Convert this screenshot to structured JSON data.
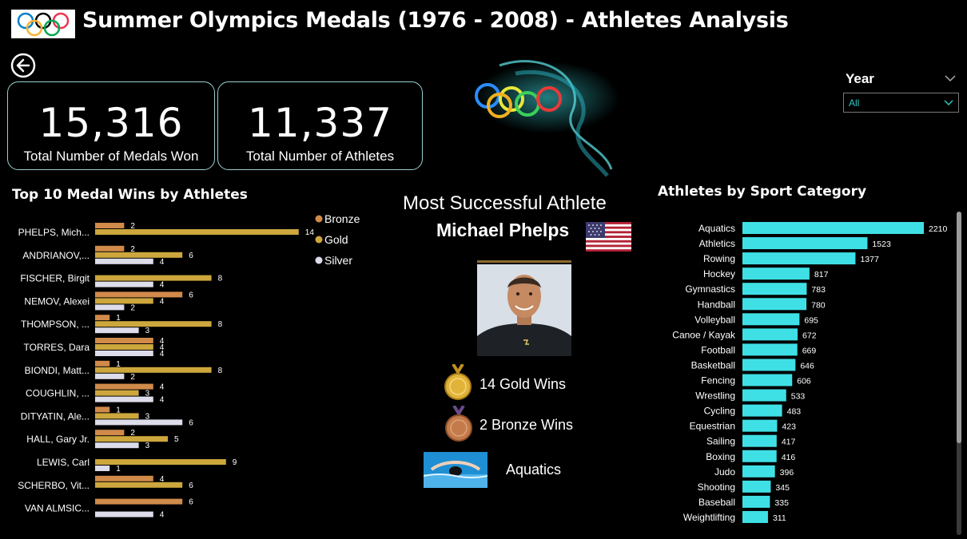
{
  "header": {
    "title": "Summer Olympics Medals (1976 - 2008) - Athletes Analysis",
    "logo_icon": "olympic-rings-icon",
    "back_icon": "back-arrow-icon"
  },
  "kpis": [
    {
      "value": "15,316",
      "label": "Total  Number of Medals Won"
    },
    {
      "value": "11,337",
      "label": "Total Number of Athletes"
    }
  ],
  "slicer": {
    "title": "Year",
    "value": "All"
  },
  "colors": {
    "bronze": "#d08a4a",
    "gold": "#cda73d",
    "silver": "#dcdcea",
    "accent": "#3fe0e5"
  },
  "athletes_chart": {
    "title": "Top 10 Medal Wins by Athletes",
    "legend": [
      "Bronze",
      "Gold",
      "Silver"
    ],
    "chart_data": {
      "type": "bar",
      "orientation": "horizontal",
      "title": "Top 10 Medal Wins by Athletes",
      "legend_position": "top-right",
      "categories": [
        "PHELPS, Mich...",
        "ANDRIANOV,...",
        "FISCHER, Birgit",
        "NEMOV, Alexei",
        "THOMPSON, ...",
        "TORRES, Dara",
        "BIONDI, Matt...",
        "COUGHLIN, ...",
        "DITYATIN, Ale...",
        "HALL, Gary Jr.",
        "LEWIS, Carl",
        "SCHERBO, Vit...",
        "VAN ALMSIC..."
      ],
      "series": [
        {
          "name": "Bronze",
          "values": [
            2,
            2,
            null,
            6,
            1,
            4,
            1,
            4,
            1,
            2,
            null,
            4,
            6
          ]
        },
        {
          "name": "Gold",
          "values": [
            14,
            6,
            8,
            4,
            8,
            4,
            8,
            3,
            3,
            5,
            9,
            6,
            null
          ]
        },
        {
          "name": "Silver",
          "values": [
            null,
            4,
            4,
            2,
            3,
            4,
            2,
            4,
            6,
            3,
            1,
            null,
            4
          ]
        }
      ]
    }
  },
  "athlete": {
    "section_title": "Most Successful Athlete",
    "name": "Michael Phelps",
    "gold_text": "14 Gold Wins",
    "bronze_text": "2 Bronze Wins",
    "sport": "Aquatics",
    "flag_icon": "us-flag-icon"
  },
  "sport_chart": {
    "title": "Athletes by Sport Category",
    "chart_data": {
      "type": "bar",
      "orientation": "horizontal",
      "title": "Athletes by Sport Category",
      "categories": [
        "Aquatics",
        "Athletics",
        "Rowing",
        "Hockey",
        "Gymnastics",
        "Handball",
        "Volleyball",
        "Canoe / Kayak",
        "Football",
        "Basketball",
        "Fencing",
        "Wrestling",
        "Cycling",
        "Equestrian",
        "Sailing",
        "Boxing",
        "Judo",
        "Shooting",
        "Baseball",
        "Weightlifting"
      ],
      "values": [
        2210,
        1523,
        1377,
        817,
        783,
        780,
        695,
        672,
        669,
        646,
        606,
        533,
        483,
        423,
        417,
        416,
        396,
        345,
        335,
        311
      ]
    }
  }
}
